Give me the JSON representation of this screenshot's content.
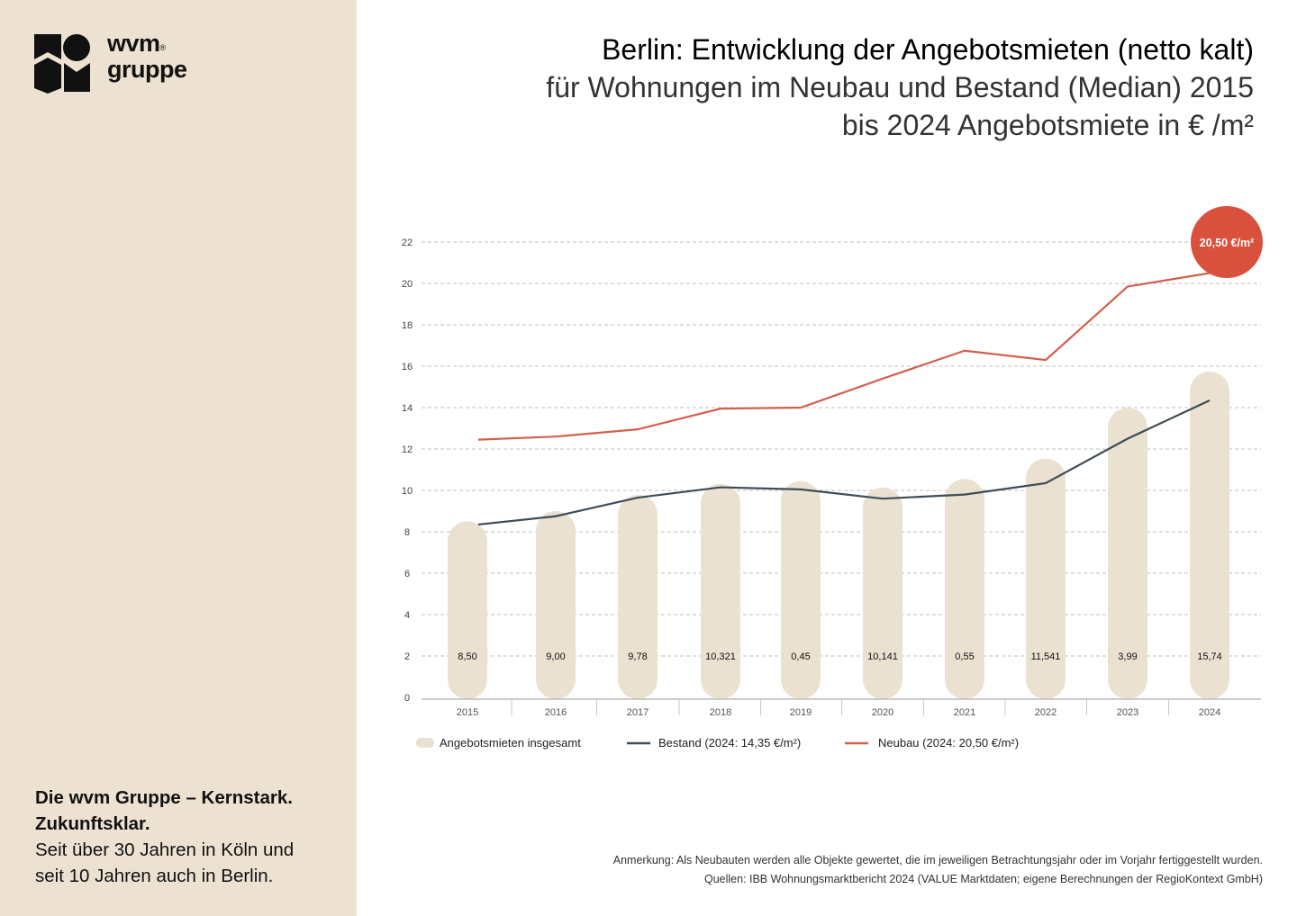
{
  "brand": {
    "name_line1": "wvm",
    "name_line2": "gruppe",
    "registered": "®"
  },
  "tagline": {
    "bold1": "Die wvm Gruppe – Kernstark.",
    "bold2": "Zukunftsklar.",
    "line3": "Seit über 30 Jahren in Köln und",
    "line4": "seit 10 Jahren auch in Berlin."
  },
  "colors": {
    "sidebar": "#ede2d2",
    "bars": "#ebe1d1",
    "bestand": "#3e4c55",
    "neubau": "#d2604d",
    "highlight": "#d9503c"
  },
  "chart_data": {
    "type": "bar+line",
    "title": "Berlin: Entwicklung der Angebotsmieten (netto kalt)",
    "subtitle_line1": "für Wohnungen im Neubau und Bestand (Median) 2015",
    "subtitle_line2": "bis 2024 Angebotsmiete in € /m²",
    "categories": [
      "2015",
      "2016",
      "2017",
      "2018",
      "2019",
      "2020",
      "2021",
      "2022",
      "2023",
      "2024"
    ],
    "ylim": [
      0,
      22
    ],
    "yticks": [
      "0",
      "2",
      "4",
      "6",
      "8",
      "10",
      "12",
      "14",
      "16",
      "18",
      "20",
      "22"
    ],
    "grid": true,
    "legend_placement": "bottom-left",
    "series": [
      {
        "name": "Angebotsmieten insgesamt",
        "kind": "bar",
        "values": [
          8.5,
          9.0,
          9.78,
          10.32,
          10.45,
          10.14,
          10.55,
          11.54,
          13.99,
          15.74
        ],
        "labels": [
          "8,50",
          "9,00",
          "9,78",
          "10,321",
          "0,45",
          "10,141",
          "0,55",
          "11,541",
          "3,99",
          "15,74"
        ]
      },
      {
        "name": "Bestand (2024: 14,35 €/m²)",
        "kind": "line",
        "values": [
          8.35,
          8.75,
          9.65,
          10.15,
          10.05,
          9.6,
          9.8,
          10.35,
          12.5,
          14.35
        ]
      },
      {
        "name": "Neubau (2024: 20,50 €/m²)",
        "kind": "line",
        "values": [
          12.45,
          12.6,
          12.95,
          13.95,
          14.0,
          15.4,
          16.75,
          16.3,
          19.85,
          20.5
        ]
      }
    ],
    "annotation": "20,50 €/m²"
  },
  "notes": {
    "line1": "Anmerkung: Als Neubauten werden alle Objekte gewertet, die im jeweiligen Betrachtungsjahr oder im Vorjahr fertiggestellt wurden.",
    "line2": "Quellen: IBB Wohnungsmarktbericht 2024 (VALUE Marktdaten; eigene Berechnungen der RegioKontext GmbH)"
  }
}
